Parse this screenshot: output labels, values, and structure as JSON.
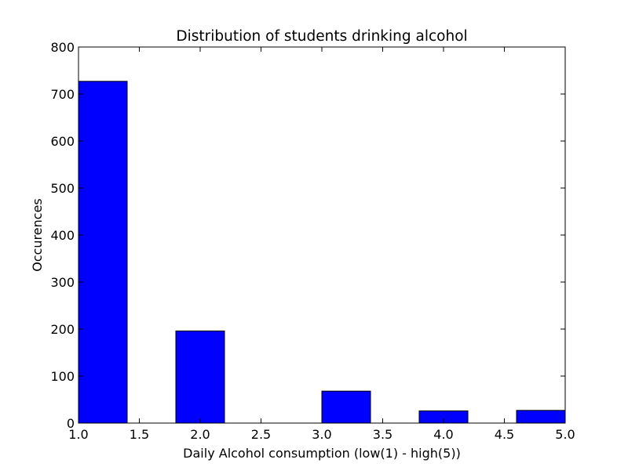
{
  "chart_data": {
    "type": "bar",
    "title": "Distribution of students drinking alcohol",
    "xlabel": "Daily Alcohol consumption (low(1) - high(5))",
    "ylabel": "Occurences",
    "xlim": [
      1.0,
      5.0
    ],
    "ylim": [
      0,
      800
    ],
    "xticks": [
      "1.0",
      "1.5",
      "2.0",
      "2.5",
      "3.0",
      "3.5",
      "4.0",
      "4.5",
      "5.0"
    ],
    "yticks": [
      "0",
      "100",
      "200",
      "300",
      "400",
      "500",
      "600",
      "700",
      "800"
    ],
    "bins": [
      {
        "x0": 1.0,
        "x1": 1.4,
        "value": 727
      },
      {
        "x0": 1.4,
        "x1": 1.8,
        "value": 0
      },
      {
        "x0": 1.8,
        "x1": 2.2,
        "value": 196
      },
      {
        "x0": 2.2,
        "x1": 2.6,
        "value": 0
      },
      {
        "x0": 2.6,
        "x1": 3.0,
        "value": 0
      },
      {
        "x0": 3.0,
        "x1": 3.4,
        "value": 68
      },
      {
        "x0": 3.4,
        "x1": 3.8,
        "value": 0
      },
      {
        "x0": 3.8,
        "x1": 4.2,
        "value": 26
      },
      {
        "x0": 4.2,
        "x1": 4.6,
        "value": 0
      },
      {
        "x0": 4.6,
        "x1": 5.0,
        "value": 27
      }
    ],
    "bar_color": "#0000ff",
    "edge_color": "#000000",
    "grid": false,
    "legend": false
  }
}
